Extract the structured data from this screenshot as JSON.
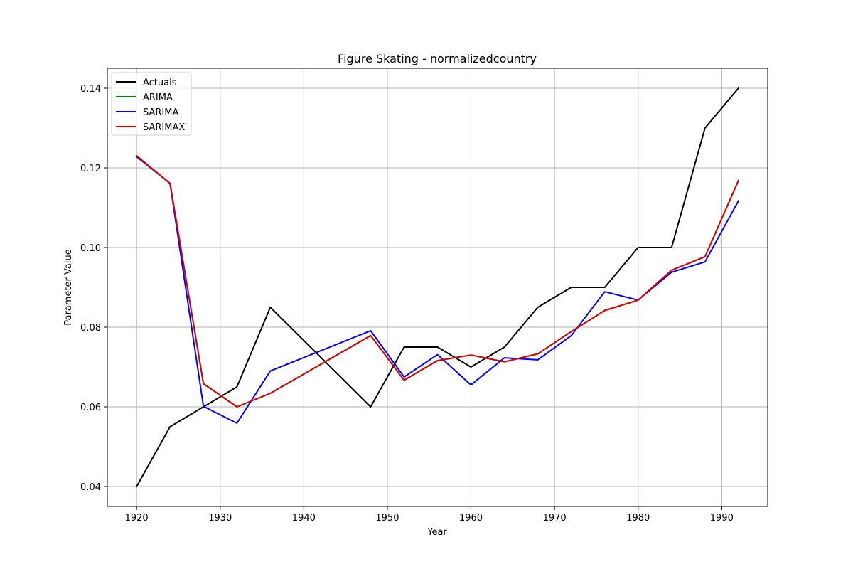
{
  "chart_data": {
    "type": "line",
    "title": "Figure Skating - normalizedcountry",
    "xlabel": "Year",
    "ylabel": "Parameter Value",
    "xlim": [
      1916.5,
      1995.5
    ],
    "ylim": [
      0.035,
      0.145
    ],
    "xticks": [
      1920,
      1930,
      1940,
      1950,
      1960,
      1970,
      1980,
      1990
    ],
    "yticks": [
      0.04,
      0.06,
      0.08,
      0.1,
      0.12,
      0.14
    ],
    "ytick_labels": [
      "0.04",
      "0.06",
      "0.08",
      "0.10",
      "0.12",
      "0.14"
    ],
    "grid": true,
    "legend_position": "top-left",
    "x": [
      1920,
      1924,
      1928,
      1932,
      1936,
      1948,
      1952,
      1956,
      1960,
      1964,
      1968,
      1972,
      1976,
      1980,
      1984,
      1988,
      1992
    ],
    "series": [
      {
        "name": "Actuals",
        "color": "#000000",
        "values": [
          0.04,
          0.055,
          0.06,
          0.065,
          0.085,
          0.06,
          0.075,
          0.075,
          0.07,
          0.075,
          0.085,
          0.09,
          0.09,
          0.1,
          0.1,
          0.13,
          0.14
        ]
      },
      {
        "name": "ARIMA",
        "color": "#008000",
        "values": [
          0.123,
          0.1161,
          0.0658,
          0.06,
          0.0634,
          0.0779,
          0.0667,
          0.0716,
          0.073,
          0.0713,
          0.0733,
          0.0789,
          0.0842,
          0.0868,
          0.0943,
          0.0977,
          0.1168
        ]
      },
      {
        "name": "SARIMA",
        "color": "#0000ff",
        "values": [
          0.1228,
          0.1161,
          0.0601,
          0.0559,
          0.069,
          0.0791,
          0.0675,
          0.0731,
          0.0655,
          0.0723,
          0.0718,
          0.0779,
          0.0889,
          0.0868,
          0.0938,
          0.0964,
          0.1117
        ]
      },
      {
        "name": "SARIMAX",
        "color": "#dd0000",
        "values": [
          0.123,
          0.1161,
          0.0658,
          0.06,
          0.0634,
          0.0779,
          0.0667,
          0.0716,
          0.073,
          0.0713,
          0.0733,
          0.0789,
          0.0842,
          0.0868,
          0.0943,
          0.0977,
          0.1168
        ]
      }
    ]
  }
}
